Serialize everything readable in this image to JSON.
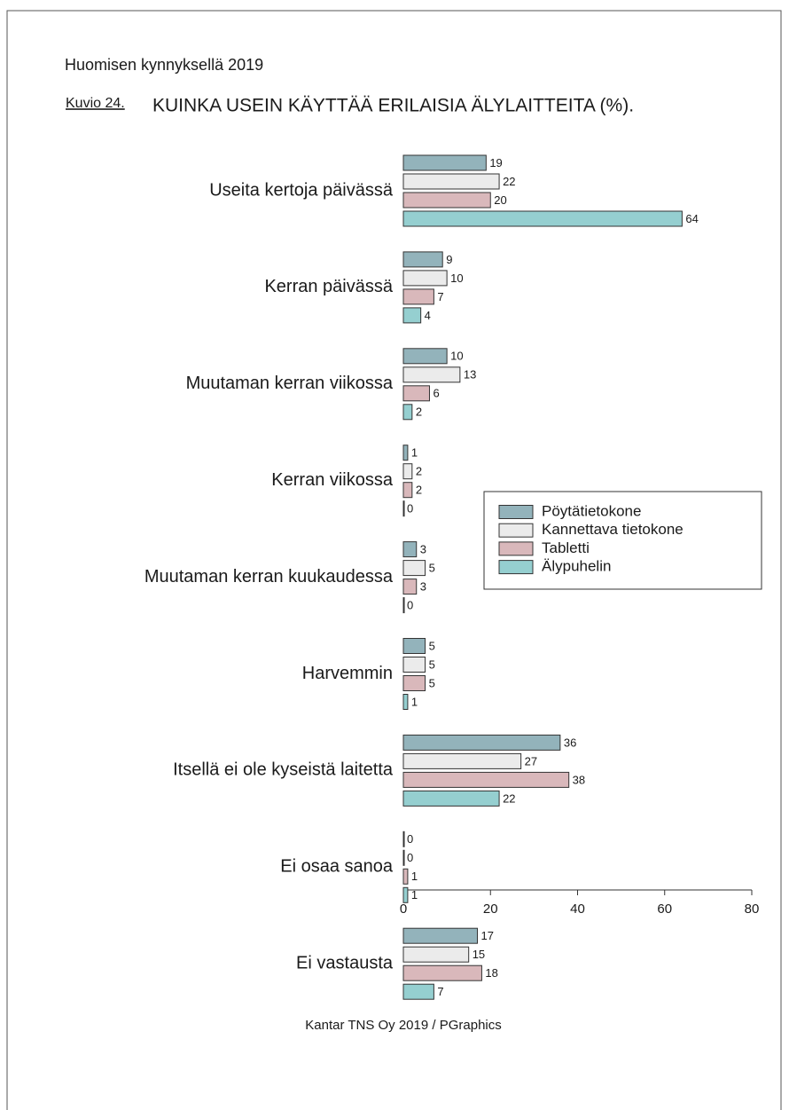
{
  "chart_data": {
    "type": "bar",
    "orientation": "horizontal",
    "header": "Huomisen kynnyksellä 2019",
    "figure_label": "Kuvio 24.",
    "title": "KUINKA USEIN KÄYTTÄÄ ERILAISIA ÄLYLAITTEITA (%).",
    "source": "Kantar TNS Oy 2019 / PGraphics",
    "categories": [
      "Useita kertoja päivässä",
      "Kerran päivässä",
      "Muutaman kerran viikossa",
      "Kerran viikossa",
      "Muutaman kerran kuukaudessa",
      "Harvemmin",
      "Itsellä ei ole kyseistä laitetta",
      "Ei osaa sanoa",
      "Ei vastausta"
    ],
    "series": [
      {
        "name": "Pöytätietokone",
        "color": "#93b3bb",
        "values": [
          19,
          9,
          10,
          1,
          3,
          5,
          36,
          0,
          17
        ]
      },
      {
        "name": "Kannettava tietokone",
        "color": "#ebebeb",
        "values": [
          22,
          10,
          13,
          2,
          5,
          5,
          27,
          0,
          15
        ]
      },
      {
        "name": "Tabletti",
        "color": "#d9b8bb",
        "values": [
          20,
          7,
          6,
          2,
          3,
          5,
          38,
          1,
          18
        ]
      },
      {
        "name": "Älypuhelin",
        "color": "#95cfd0",
        "values": [
          64,
          4,
          2,
          0,
          0,
          1,
          22,
          1,
          7
        ]
      }
    ],
    "xlim": [
      0,
      80
    ],
    "xticks": [
      0,
      20,
      40,
      60,
      80
    ],
    "legend": "center right"
  }
}
